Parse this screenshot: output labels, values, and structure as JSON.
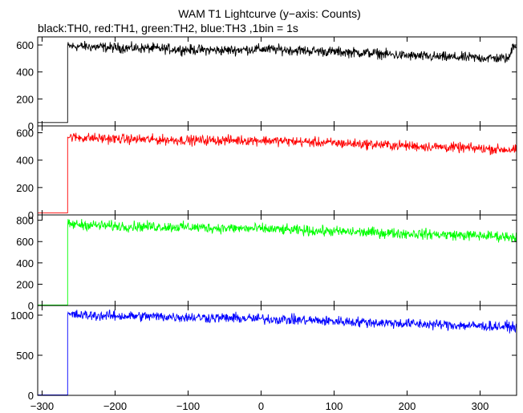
{
  "chart_data": {
    "type": "line",
    "title": "WAM T1 Lightcurve (y−axis: Counts)",
    "subtitle": "black:TH0, red:TH1, green:TH2, blue:TH3 ,1bin = 1s",
    "xlim": [
      -306,
      350
    ],
    "x_ticks": [
      -300,
      -200,
      -100,
      0,
      100,
      200,
      300
    ],
    "x_tick_labels": [
      "−300",
      "−200",
      "−100",
      "0",
      "100",
      "200",
      "300"
    ],
    "onset_x": -265,
    "series": [
      {
        "color": "#000000",
        "ylim": [
          0,
          660
        ],
        "y_ticks": [
          0,
          200,
          400,
          600
        ],
        "background_level": 25,
        "x": [
          -265,
          -250,
          -200,
          -150,
          -100,
          -50,
          0,
          50,
          100,
          150,
          200,
          250,
          300,
          340,
          345,
          350
        ],
        "y": [
          590,
          590,
          580,
          575,
          565,
          560,
          570,
          560,
          550,
          540,
          520,
          510,
          505,
          500,
          600,
          600
        ]
      },
      {
        "color": "#ff0000",
        "ylim": [
          0,
          650
        ],
        "y_ticks": [
          0,
          200,
          400,
          600
        ],
        "background_level": 15,
        "x": [
          -265,
          -250,
          -200,
          -150,
          -100,
          -50,
          0,
          50,
          100,
          150,
          200,
          250,
          300,
          345
        ],
        "y": [
          570,
          565,
          555,
          550,
          545,
          545,
          545,
          535,
          525,
          515,
          505,
          495,
          485,
          475
        ]
      },
      {
        "color": "#00ff00",
        "ylim": [
          0,
          850
        ],
        "y_ticks": [
          0,
          200,
          400,
          600,
          800
        ],
        "background_level": 5,
        "x": [
          -265,
          -250,
          -200,
          -150,
          -100,
          -50,
          0,
          50,
          100,
          150,
          200,
          250,
          300,
          345
        ],
        "y": [
          760,
          760,
          745,
          740,
          735,
          725,
          720,
          705,
          695,
          685,
          675,
          665,
          655,
          645
        ]
      },
      {
        "color": "#0000ff",
        "ylim": [
          0,
          1120
        ],
        "y_ticks": [
          0,
          500,
          1000
        ],
        "background_level": 5,
        "x": [
          -265,
          -250,
          -200,
          -150,
          -100,
          -50,
          0,
          50,
          100,
          150,
          200,
          250,
          300,
          345
        ],
        "y": [
          1005,
          1000,
          990,
          985,
          975,
          965,
          955,
          940,
          925,
          910,
          895,
          880,
          865,
          855
        ]
      }
    ]
  }
}
